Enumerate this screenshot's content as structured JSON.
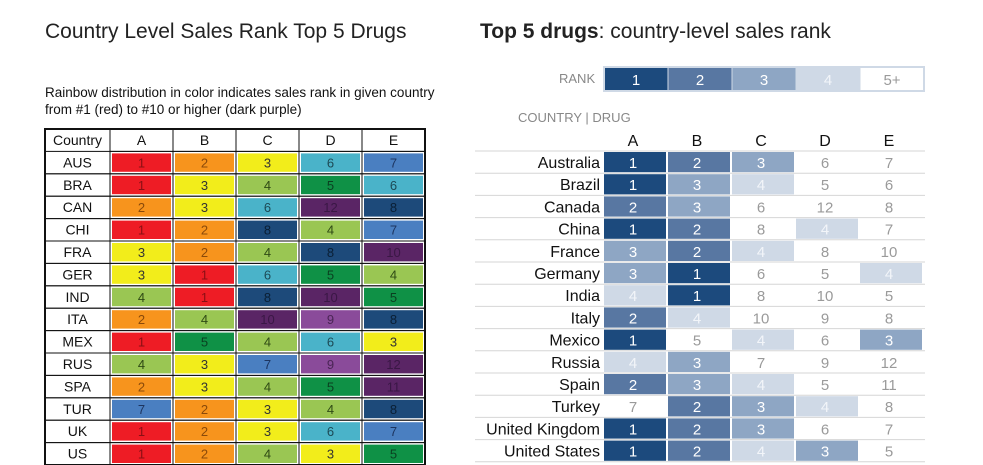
{
  "colors": {
    "rainbow": {
      "1": "#ee1c25",
      "2": "#f7941d",
      "3": "#f2ed1b",
      "4": "#9ac653",
      "5": "#0f9146",
      "6": "#4ab3c9",
      "7": "#4a7fc1",
      "8": "#1d4a7a",
      "9": "#8a4b9a",
      "10": "#5a2565",
      "12": "#5a2565",
      "11": "#5a2565"
    },
    "blues": {
      "1": "#1c4a7d",
      "2": "#5877a2",
      "3": "#8ea6c4",
      "4": "#cfd9e6",
      "5plus": "#ffffff"
    }
  },
  "left": {
    "title": "Country Level Sales Rank Top 5 Drugs",
    "note": "Rainbow distribution in color indicates sales rank in given country from #1 (red) to #10 or higher (dark purple)",
    "header_country": "Country"
  },
  "right": {
    "title_bold": "Top 5 drugs",
    "title_rest": ": country-level sales rank",
    "rank_label": "RANK",
    "rank_legend": [
      "1",
      "2",
      "3",
      "4",
      "5+"
    ],
    "country_drug_label": "COUNTRY | DRUG"
  },
  "chart_data": [
    {
      "type": "heatmap",
      "title": "Country Level Sales Rank Top 5 Drugs",
      "x": [
        "A",
        "B",
        "C",
        "D",
        "E"
      ],
      "y": [
        "AUS",
        "BRA",
        "CAN",
        "CHI",
        "FRA",
        "GER",
        "IND",
        "ITA",
        "MEX",
        "RUS",
        "SPA",
        "TUR",
        "UK",
        "US"
      ],
      "values": [
        [
          1,
          2,
          3,
          6,
          7
        ],
        [
          1,
          3,
          4,
          5,
          6
        ],
        [
          2,
          3,
          6,
          12,
          8
        ],
        [
          1,
          2,
          8,
          4,
          7
        ],
        [
          3,
          2,
          4,
          8,
          10
        ],
        [
          3,
          1,
          6,
          5,
          4
        ],
        [
          4,
          1,
          8,
          10,
          5
        ],
        [
          2,
          4,
          10,
          9,
          8
        ],
        [
          1,
          5,
          4,
          6,
          3
        ],
        [
          4,
          3,
          7,
          9,
          12
        ],
        [
          2,
          3,
          4,
          5,
          11
        ],
        [
          7,
          2,
          3,
          4,
          8
        ],
        [
          1,
          2,
          3,
          6,
          7
        ],
        [
          1,
          2,
          4,
          3,
          5
        ]
      ]
    },
    {
      "type": "heatmap",
      "title": "Top 5 drugs: country-level sales rank",
      "x": [
        "A",
        "B",
        "C",
        "D",
        "E"
      ],
      "y": [
        "Australia",
        "Brazil",
        "Canada",
        "China",
        "France",
        "Germany",
        "India",
        "Italy",
        "Mexico",
        "Russia",
        "Spain",
        "Turkey",
        "United Kingdom",
        "United States"
      ],
      "values": [
        [
          1,
          2,
          3,
          6,
          7
        ],
        [
          1,
          3,
          4,
          5,
          6
        ],
        [
          2,
          3,
          6,
          12,
          8
        ],
        [
          1,
          2,
          8,
          4,
          7
        ],
        [
          3,
          2,
          4,
          8,
          10
        ],
        [
          3,
          1,
          6,
          5,
          4
        ],
        [
          4,
          1,
          8,
          10,
          5
        ],
        [
          2,
          4,
          10,
          9,
          8
        ],
        [
          1,
          5,
          4,
          6,
          3
        ],
        [
          4,
          3,
          7,
          9,
          12
        ],
        [
          2,
          3,
          4,
          5,
          11
        ],
        [
          7,
          2,
          3,
          4,
          8
        ],
        [
          1,
          2,
          3,
          6,
          7
        ],
        [
          1,
          2,
          4,
          3,
          5
        ]
      ]
    }
  ]
}
